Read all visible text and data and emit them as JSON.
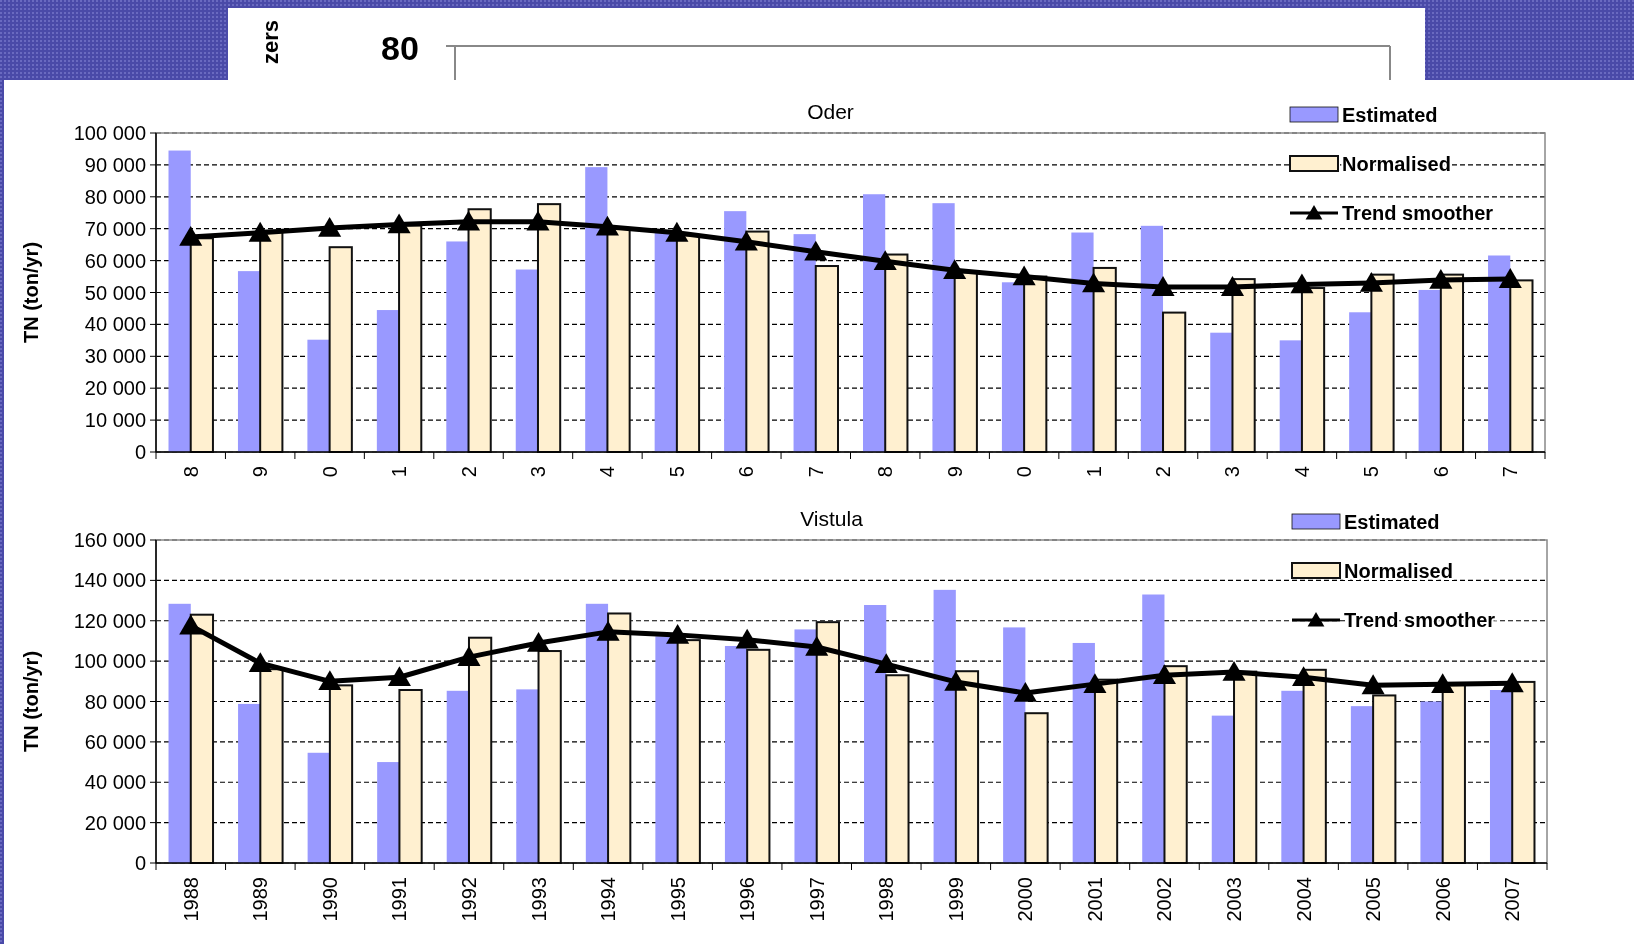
{
  "chart_data": [
    {
      "type": "other",
      "annotations": [
        "zers",
        "80"
      ]
    },
    {
      "type": "bar",
      "title": "Oder",
      "ylabel": "TN (ton/yr)",
      "categories": [
        "8",
        "9",
        "0",
        "1",
        "2",
        "3",
        "4",
        "5",
        "6",
        "7",
        "8",
        "9",
        "0",
        "1",
        "2",
        "3",
        "4",
        "5",
        "6",
        "7"
      ],
      "series": [
        {
          "name": "Estimated",
          "color": "#9999ff",
          "values": [
            94500,
            56700,
            35200,
            44500,
            66000,
            57200,
            89300,
            69100,
            75500,
            68300,
            80800,
            78000,
            53200,
            68800,
            70900,
            37400,
            35000,
            43800,
            50800,
            61600
          ]
        },
        {
          "name": "Normalised",
          "color": "#fff0d0",
          "values": [
            67000,
            69400,
            64200,
            71000,
            76100,
            77700,
            70200,
            67900,
            69100,
            58300,
            61900,
            56300,
            55000,
            57700,
            43700,
            54200,
            51400,
            55600,
            55600,
            53800
          ]
        },
        {
          "name": "Trend smoother",
          "type": "line",
          "color": "#000000",
          "marker": "triangle",
          "values": [
            67400,
            68700,
            70200,
            71300,
            72200,
            72200,
            70600,
            68700,
            65900,
            62800,
            59800,
            57000,
            55000,
            52800,
            51700,
            51700,
            52500,
            53000,
            53900,
            54200
          ]
        }
      ],
      "ylim": [
        0,
        100000
      ],
      "yticks": [
        {
          "value": 0,
          "label": "0"
        },
        {
          "value": 10000,
          "label": "10 000"
        },
        {
          "value": 20000,
          "label": "20 000"
        },
        {
          "value": 30000,
          "label": "30 000"
        },
        {
          "value": 40000,
          "label": "40 000"
        },
        {
          "value": 50000,
          "label": "50 000"
        },
        {
          "value": 60000,
          "label": "60 000"
        },
        {
          "value": 70000,
          "label": "70 000"
        },
        {
          "value": 80000,
          "label": "80 000"
        },
        {
          "value": 90000,
          "label": "90 000"
        },
        {
          "value": 100000,
          "label": "100 000"
        }
      ],
      "grid": "y",
      "legend": "top right"
    },
    {
      "type": "bar",
      "title": "Vistula",
      "ylabel": "TN (ton/yr)",
      "categories": [
        "1988",
        "1989",
        "1990",
        "1991",
        "1992",
        "1993",
        "1994",
        "1995",
        "1996",
        "1997",
        "1998",
        "1999",
        "2000",
        "2001",
        "2002",
        "2003",
        "2004",
        "2005",
        "2006",
        "2007"
      ],
      "series": [
        {
          "name": "Estimated",
          "color": "#9999ff",
          "values": [
            128400,
            78800,
            54600,
            50000,
            85300,
            86000,
            128400,
            112300,
            107500,
            115700,
            127800,
            135300,
            116700,
            109000,
            133000,
            73000,
            85300,
            77700,
            80000,
            85700
          ]
        },
        {
          "name": "Normalised",
          "color": "#fff0d0",
          "values": [
            123000,
            96000,
            88000,
            85700,
            111600,
            105000,
            123600,
            110400,
            105600,
            119300,
            93000,
            95000,
            74200,
            90800,
            97500,
            94800,
            95700,
            83000,
            88600,
            89700
          ]
        },
        {
          "name": "Trend smoother",
          "type": "line",
          "color": "#000000",
          "marker": "triangle",
          "values": [
            117600,
            99000,
            90000,
            92000,
            102000,
            109000,
            114500,
            113000,
            110600,
            107000,
            98500,
            89700,
            84200,
            88600,
            93000,
            94600,
            92000,
            88000,
            88600,
            89000
          ]
        }
      ],
      "ylim": [
        0,
        160000
      ],
      "yticks": [
        {
          "value": 0,
          "label": "0"
        },
        {
          "value": 20000,
          "label": "20 000"
        },
        {
          "value": 40000,
          "label": "40 000"
        },
        {
          "value": 60000,
          "label": "60 000"
        },
        {
          "value": 80000,
          "label": "80 000"
        },
        {
          "value": 100000,
          "label": "100 000"
        },
        {
          "value": 120000,
          "label": "120 000"
        },
        {
          "value": 140000,
          "label": "140 000"
        },
        {
          "value": 160000,
          "label": "160 000"
        }
      ],
      "grid": "y",
      "legend": "top right"
    }
  ]
}
